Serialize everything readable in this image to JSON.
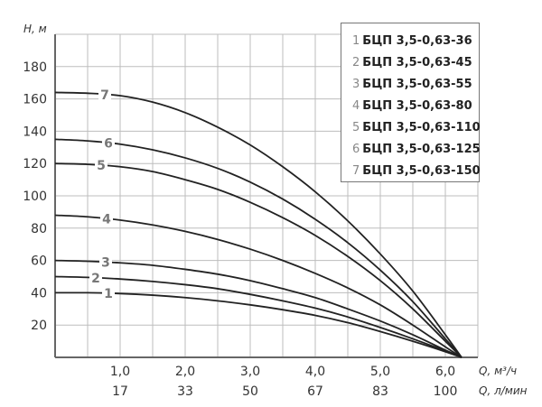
{
  "chart_data": {
    "type": "line",
    "title": "",
    "ylabel": "H, м",
    "xlabel": "Q, м³/ч",
    "xlabel2": "Q, л/мин",
    "ylim": [
      0,
      200
    ],
    "xlim": [
      0,
      6.5
    ],
    "grid": true,
    "legend_position": "top-right",
    "y_ticks": [
      20,
      40,
      60,
      80,
      100,
      120,
      140,
      160,
      180
    ],
    "x_ticks": [
      "1,0",
      "2,0",
      "3,0",
      "4,0",
      "5,0",
      "6,0"
    ],
    "x_ticks2": [
      "17",
      "33",
      "50",
      "67",
      "83",
      "100"
    ],
    "x": [
      0,
      0.5,
      1.0,
      1.5,
      2.0,
      2.5,
      3.0,
      3.5,
      4.0,
      4.5,
      5.0,
      5.5,
      6.0,
      6.25
    ],
    "series": [
      {
        "name": "1 БЦП 3,5-0,63-36",
        "values": [
          40,
          40,
          39.5,
          38.5,
          37,
          35,
          32.5,
          29.5,
          26,
          21.5,
          16,
          10,
          3.5,
          0
        ]
      },
      {
        "name": "2 БЦП 3,5-0,63-45",
        "values": [
          50,
          49.5,
          48.5,
          47,
          45,
          42.5,
          39,
          35,
          30.5,
          25,
          18.5,
          11.5,
          4,
          0
        ]
      },
      {
        "name": "3 БЦП 3,5-0,63-55",
        "values": [
          60,
          59.5,
          58.5,
          57,
          54.5,
          51.5,
          47.5,
          42.5,
          37,
          30,
          22.5,
          14,
          4.5,
          0
        ]
      },
      {
        "name": "4 БЦП 3,5-0,63-80",
        "values": [
          88,
          87,
          85,
          82,
          78,
          73,
          67,
          60,
          52,
          43,
          32.5,
          20,
          6.5,
          0
        ]
      },
      {
        "name": "5 БЦП 3,5-0,63-110",
        "values": [
          120,
          119.5,
          118,
          115,
          110,
          104,
          96,
          86.5,
          75.5,
          62.5,
          47.5,
          30,
          10,
          0
        ]
      },
      {
        "name": "6 БЦП 3,5-0,63-125",
        "values": [
          135,
          134,
          132,
          128.5,
          123.5,
          117,
          108.5,
          98,
          85.5,
          71,
          54,
          34.5,
          11.5,
          0
        ]
      },
      {
        "name": "7 БЦП 3,5-0,63-150",
        "values": [
          164,
          163.5,
          162,
          158,
          151.5,
          142.5,
          131.5,
          118,
          102.5,
          84.5,
          64,
          41,
          14,
          0
        ]
      }
    ]
  },
  "legend": {
    "items": [
      {
        "num": "1",
        "label": "БЦП 3,5-0,63-36"
      },
      {
        "num": "2",
        "label": "БЦП 3,5-0,63-45"
      },
      {
        "num": "3",
        "label": "БЦП 3,5-0,63-55"
      },
      {
        "num": "4",
        "label": "БЦП 3,5-0,63-80"
      },
      {
        "num": "5",
        "label": "БЦП 3,5-0,63-110"
      },
      {
        "num": "6",
        "label": "БЦП 3,5-0,63-125"
      },
      {
        "num": "7",
        "label": "БЦП 3,5-0,63-150"
      }
    ]
  },
  "curve_labels": [
    "1",
    "2",
    "3",
    "4",
    "5",
    "6",
    "7"
  ]
}
